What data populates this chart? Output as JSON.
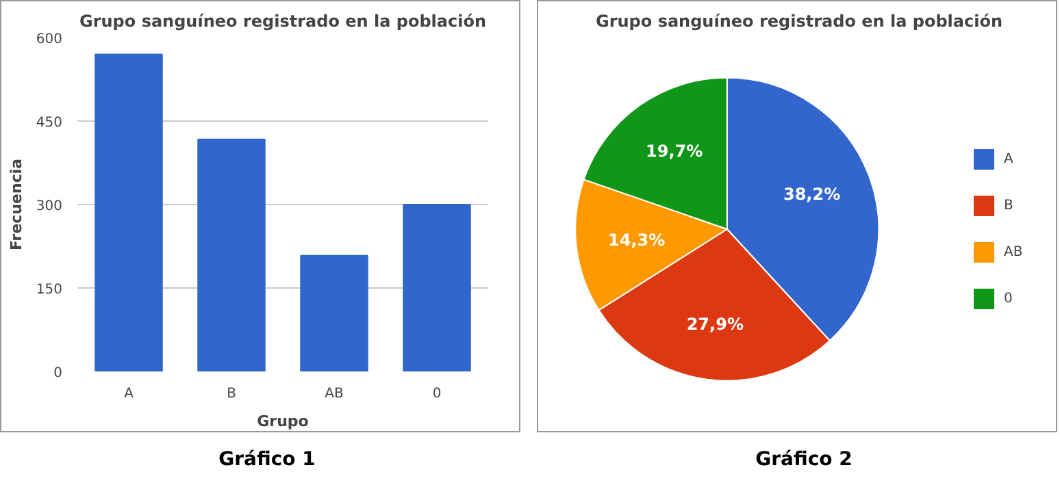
{
  "chart_data": [
    {
      "type": "bar",
      "title": "Grupo sanguíneo registrado en la población",
      "xlabel": "Grupo",
      "ylabel": "Frecuencia",
      "categories": [
        "A",
        "B",
        "AB",
        "0"
      ],
      "values": [
        570,
        417,
        208,
        300
      ],
      "color": "#3366cc",
      "ylim": [
        0,
        600
      ],
      "yticks": [
        0,
        150,
        300,
        450,
        600
      ],
      "grid": "y",
      "annotations": [
        "Gráfico 1"
      ]
    },
    {
      "type": "pie",
      "title": "Grupo sanguíneo registrado en la población",
      "categories": [
        "A",
        "B",
        "AB",
        "0"
      ],
      "values": [
        38.2,
        27.9,
        14.3,
        19.7
      ],
      "colors": [
        "#3366cc",
        "#dc3912",
        "#ff9900",
        "#109618"
      ],
      "value_labels": [
        "38,2%",
        "27,9%",
        "14,3%",
        "19,7%"
      ],
      "legend": "right",
      "annotations": [
        "Gráfico 2"
      ]
    }
  ]
}
